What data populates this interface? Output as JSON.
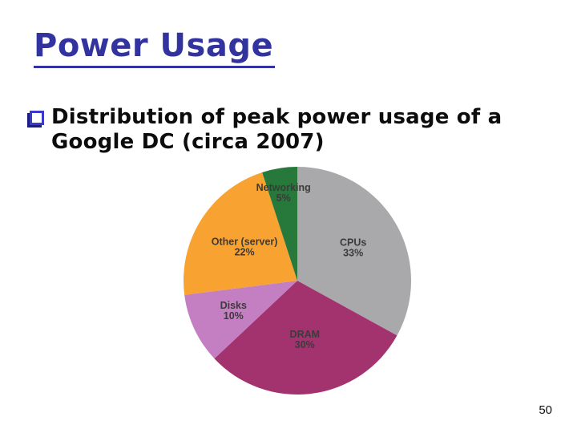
{
  "slide": {
    "title": "Power Usage",
    "bullet": {
      "icon": "shadowed-open-square-bullet",
      "lines": [
        "Distribution of peak power usage of a",
        "Google DC (circa 2007)"
      ]
    },
    "page_number": "50"
  },
  "colors": {
    "title_text": "#3333a0",
    "body_text": "#0c0c0c",
    "bullet_square_border": "#3a3ac8",
    "bullet_square_shadow": "#1b1b80",
    "pie_label_text": "#3b3b3b"
  },
  "chart_data": {
    "type": "pie",
    "description": "Distribution of peak power usage of a Google DC (circa 2007)",
    "start_angle_deg": 0,
    "direction": "clockwise",
    "legend_position": "none",
    "label_color": "#3b3b3b",
    "slices": [
      {
        "label": "CPUs",
        "value_pct": 33,
        "color": "#a9a9ab",
        "label_radius": 0.57
      },
      {
        "label": "DRAM",
        "value_pct": 30,
        "color": "#a3336f",
        "label_radius": 0.52
      },
      {
        "label": "Disks",
        "value_pct": 10,
        "color": "#c47fc2",
        "label_radius": 0.62
      },
      {
        "label": "Other (server)",
        "value_pct": 22,
        "color": "#f8a231",
        "label_radius": 0.55
      },
      {
        "label": "Networking",
        "value_pct": 5,
        "color": "#26793a",
        "label_radius": 0.78
      }
    ]
  }
}
